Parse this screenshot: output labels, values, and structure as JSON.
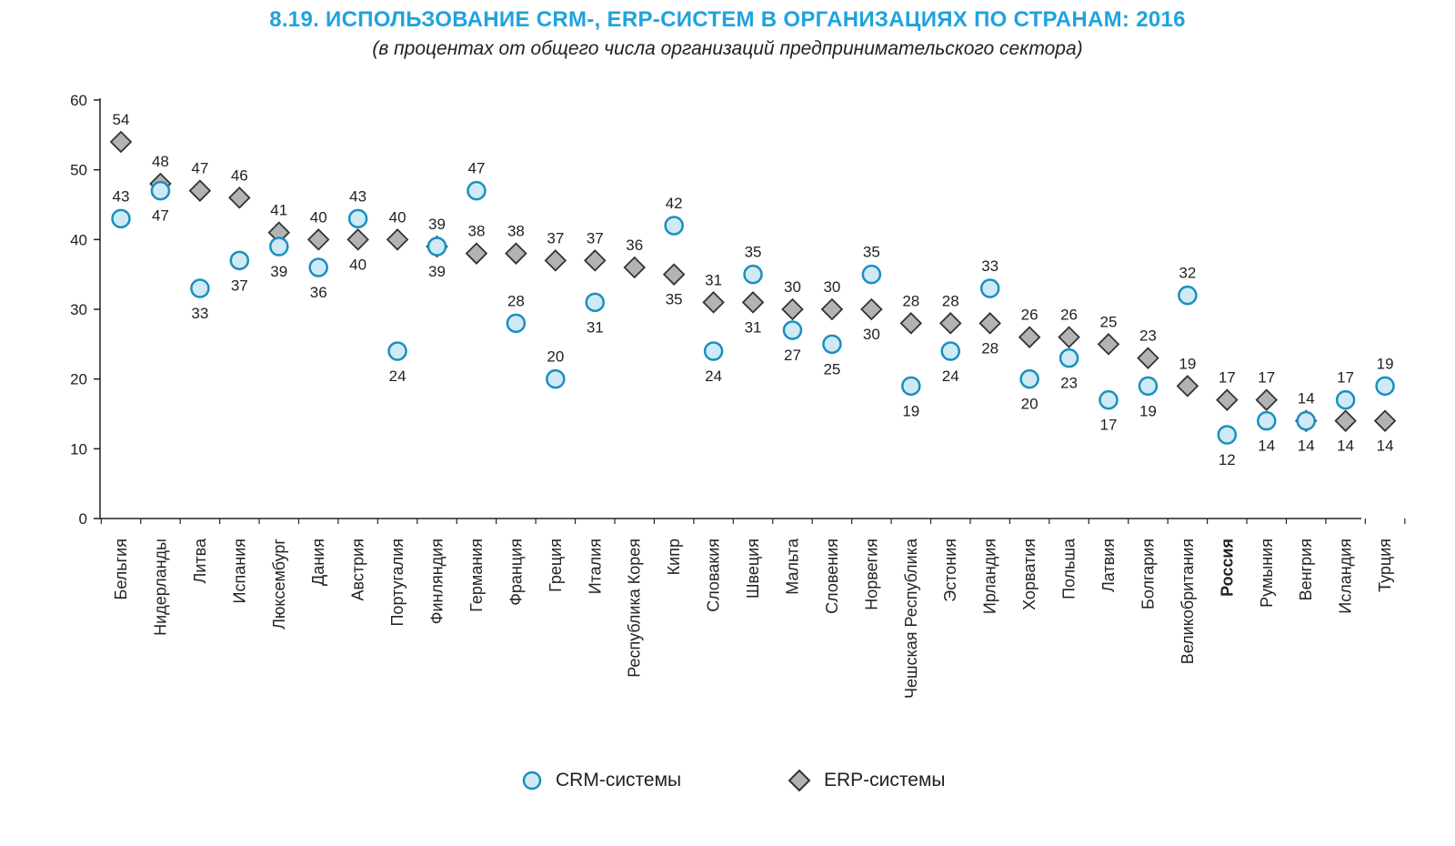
{
  "title": "8.19. ИСПОЛЬЗОВАНИЕ CRM-, ERP-СИСТЕМ В ОРГАНИЗАЦИЯХ ПО СТРАНАМ: 2016",
  "subtitle": "(в процентах от общего числа организаций предпринимательского сектора)",
  "colors": {
    "title": "#1fa3dd",
    "crm_fill": "#cfeaf5",
    "crm_stroke": "#1a8fbf",
    "erp_fill": "#b3b3b3",
    "erp_stroke": "#333333"
  },
  "legend": {
    "crm_label": "CRM-системы",
    "erp_label": "ERP-системы",
    "crm_icon": "circle-marker-icon",
    "erp_icon": "diamond-marker-icon"
  },
  "chart_data": {
    "type": "scatter",
    "title": "8.19. ИСПОЛЬЗОВАНИЕ CRM-, ERP-СИСТЕМ В ОРГАНИЗАЦИЯХ ПО СТРАНАМ: 2016",
    "subtitle": "(в процентах от общего числа организаций предпринимательского сектора)",
    "xlabel": "",
    "ylabel": "",
    "ylim": [
      0,
      60
    ],
    "yticks": [
      0,
      10,
      20,
      30,
      40,
      50,
      60
    ],
    "grid": false,
    "legend_position": "bottom",
    "categories": [
      "Бельгия",
      "Нидерланды",
      "Литва",
      "Испания",
      "Люксембург",
      "Дания",
      "Австрия",
      "Португалия",
      "Финляндия",
      "Германия",
      "Франция",
      "Греция",
      "Италия",
      "Республика Корея",
      "Кипр",
      "Словакия",
      "Швеция",
      "Мальта",
      "Словения",
      "Норвегия",
      "Чешская Республика",
      "Эстония",
      "Ирландия",
      "Хорватия",
      "Польша",
      "Латвия",
      "Болгария",
      "Великобритания",
      "Россия",
      "Румыния",
      "Венгрия",
      "Исландия",
      "Турция"
    ],
    "bold_categories": [
      "Россия"
    ],
    "series": [
      {
        "name": "CRM-системы",
        "marker": "circle",
        "values": [
          43,
          47,
          33,
          37,
          39,
          36,
          43,
          24,
          39,
          47,
          28,
          20,
          31,
          null,
          42,
          24,
          35,
          27,
          25,
          35,
          19,
          24,
          33,
          20,
          23,
          17,
          19,
          32,
          12,
          14,
          14,
          17,
          19
        ]
      },
      {
        "name": "ERP-системы",
        "marker": "diamond",
        "values": [
          54,
          48,
          47,
          46,
          41,
          40,
          40,
          40,
          39,
          38,
          38,
          37,
          37,
          36,
          35,
          31,
          31,
          30,
          30,
          30,
          28,
          28,
          28,
          26,
          26,
          25,
          23,
          19,
          17,
          17,
          14,
          14,
          14
        ]
      }
    ],
    "crm_label_above": [
      true,
      false,
      false,
      false,
      false,
      false,
      true,
      false,
      false,
      true,
      true,
      true,
      false,
      false,
      true,
      false,
      true,
      false,
      false,
      true,
      false,
      false,
      true,
      false,
      false,
      false,
      false,
      true,
      false,
      false,
      false,
      true,
      true
    ],
    "erp_label_above": [
      true,
      true,
      true,
      true,
      true,
      true,
      false,
      true,
      true,
      true,
      true,
      true,
      true,
      true,
      false,
      true,
      false,
      true,
      true,
      false,
      true,
      true,
      false,
      true,
      true,
      true,
      true,
      true,
      true,
      true,
      true,
      false,
      false
    ]
  }
}
